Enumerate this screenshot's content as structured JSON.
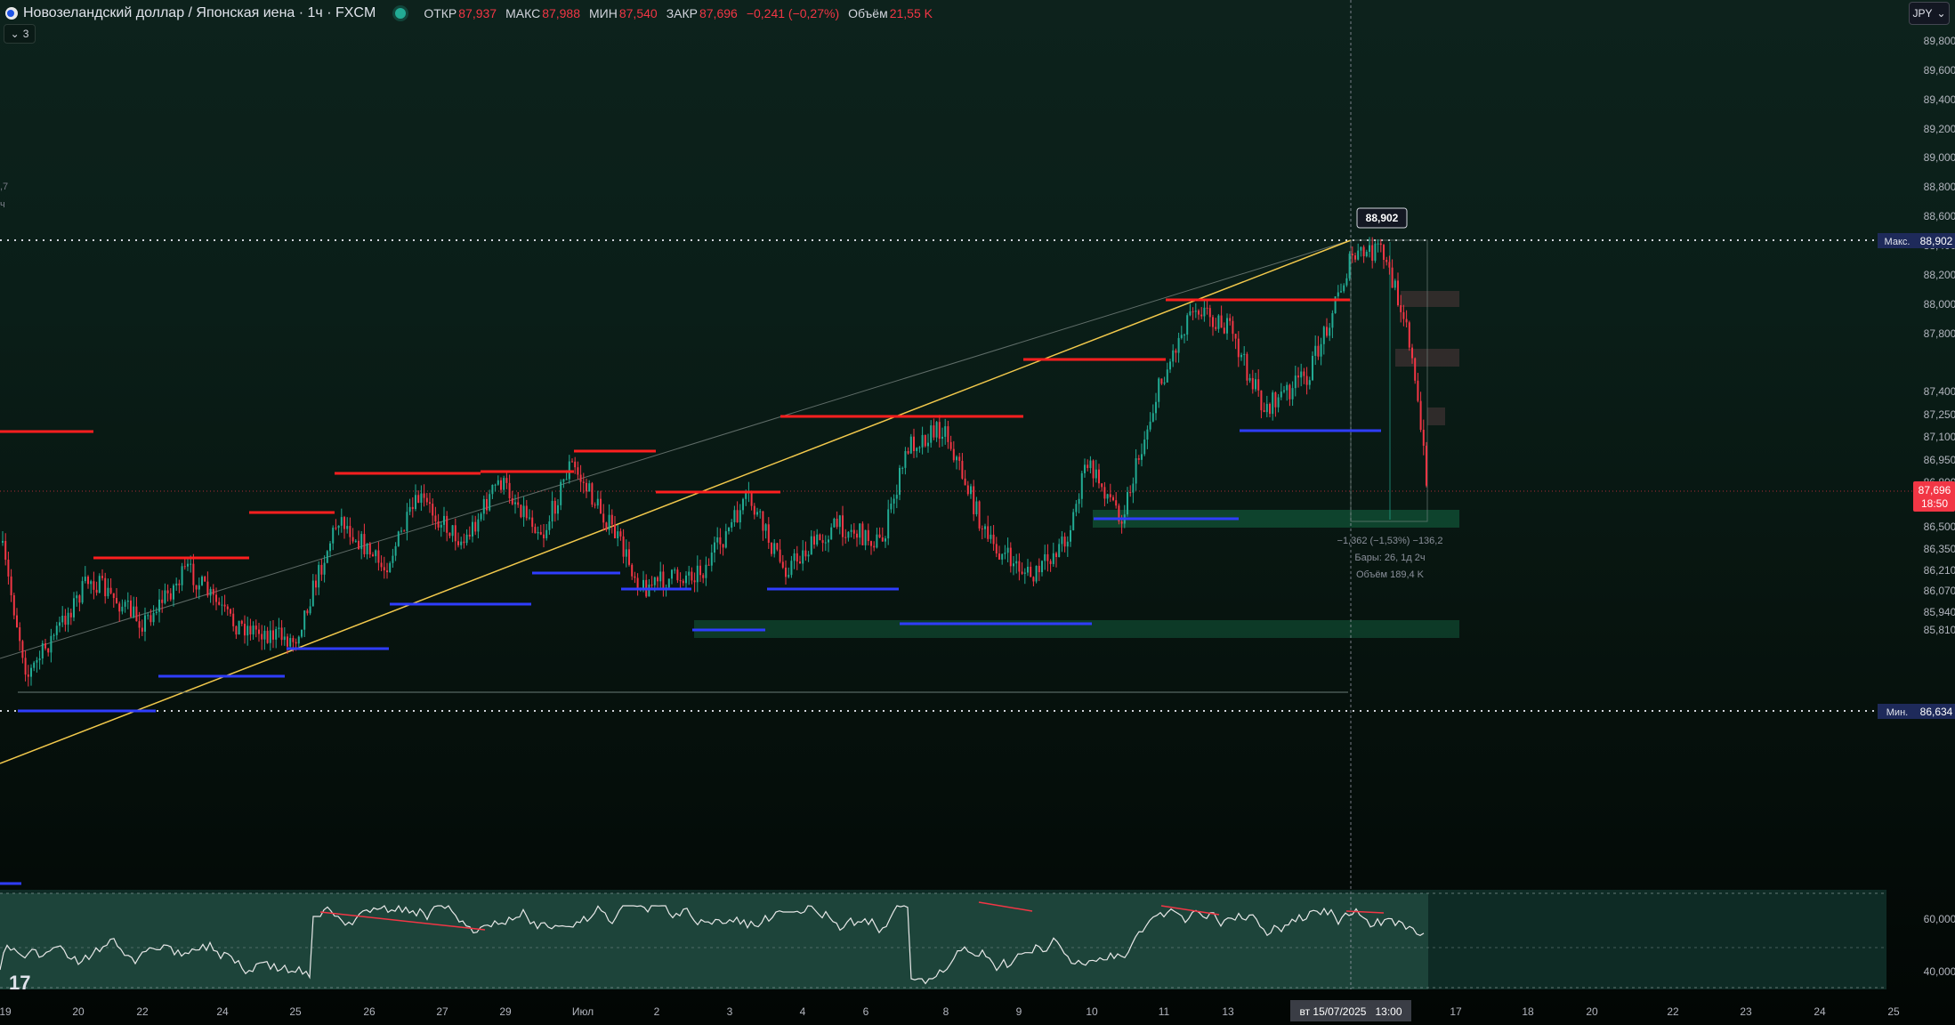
{
  "header": {
    "title": "Новозеландский доллар / Японская иена · 1ч · FXCM",
    "open_label": "ОТКР",
    "open": "87,937",
    "high_label": "МАКС",
    "high": "87,988",
    "low_label": "МИН",
    "low": "87,540",
    "close_label": "ЗАКР",
    "close": "87,696",
    "change": "−0,241 (−0,27%)",
    "volume_label": "Объём",
    "volume": "21,55 K"
  },
  "indicator_count": "3",
  "currency_button": "JPY",
  "left_notes": [
    ",7",
    "ч"
  ],
  "chart_data": {
    "type": "candlestick",
    "symbol": "NZDJPY",
    "y_axis_ticks": [
      "89,800",
      "89,600",
      "89,400",
      "89,200",
      "89,000",
      "88,800",
      "88,600",
      "88,400",
      "88,200",
      "88,000",
      "87,800",
      "87,400",
      "87,250",
      "87,100",
      "86,950",
      "86,800",
      "86,500",
      "86,350",
      "86,210",
      "86,070",
      "85,940",
      "85,810"
    ],
    "x_axis_ticks": [
      "19",
      "20",
      "22",
      "24",
      "25",
      "26",
      "27",
      "29",
      "Июл",
      "2",
      "3",
      "4",
      "6",
      "8",
      "9",
      "10",
      "11",
      "13",
      "17",
      "18",
      "20",
      "22",
      "23",
      "24",
      "25"
    ],
    "cursor_date_label": "вт 15/07/2025   13:00",
    "max_label": "Макс.",
    "max_value": "88,902",
    "min_label": "Мин.",
    "min_value": "86,634",
    "last_price": "87,696",
    "countdown": "18:50",
    "peak_callout": "88,902",
    "measure": {
      "line1": "−1,362 (−1,53%) −136,2",
      "line2": "Бары: 26, 1д 2ч",
      "line3": "Объём 189,4 K"
    },
    "rsi": {
      "ticks": [
        "60,000",
        "40,000"
      ]
    },
    "colors": {
      "up": "#22ab94",
      "down": "#f23645",
      "resistance": "#ff1f1f",
      "support": "#2f3dff",
      "trend": "#f2c94c"
    }
  }
}
